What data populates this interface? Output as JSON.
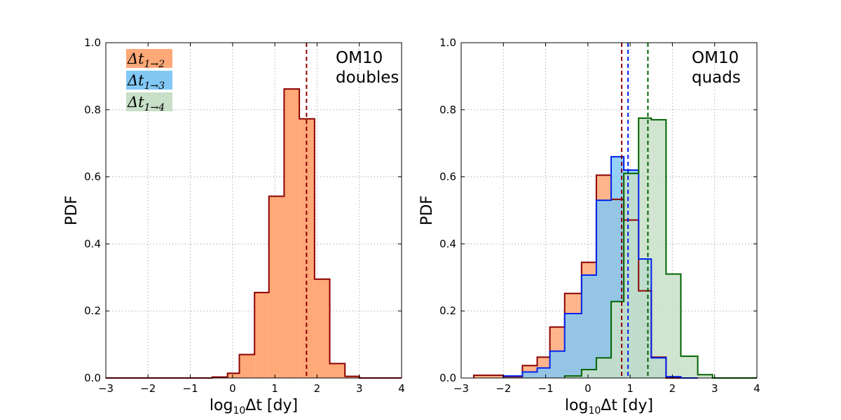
{
  "chart_data": [
    {
      "type": "histogram",
      "panel": "doubles",
      "annotation": [
        "OM10",
        "doubles"
      ],
      "xlabel": "log10Δt [dy]",
      "ylabel": "PDF",
      "xlim": [
        -3,
        4
      ],
      "ylim": [
        0,
        1.0
      ],
      "xticks": [
        "−3",
        "−2",
        "−1",
        "0",
        "1",
        "2",
        "3",
        "4"
      ],
      "yticks": [
        "0.0",
        "0.2",
        "0.4",
        "0.6",
        "0.8",
        "1.0"
      ],
      "grid": true,
      "legend": {
        "placement": "top-left",
        "entries": [
          {
            "base": "Δt",
            "sub": "1→2",
            "color": "#ffa878"
          },
          {
            "base": "Δt",
            "sub": "1→3",
            "color": "#82c8f5"
          },
          {
            "base": "Δt",
            "sub": "1→4",
            "color": "#c8dfc8"
          }
        ]
      },
      "series": [
        {
          "name": "Δt 1→2",
          "fill": "#ffa878",
          "edge": "#8b0000",
          "bin_edges": [
            -3.0,
            -2.64,
            -2.28,
            -1.92,
            -1.56,
            -1.2,
            -0.84,
            -0.48,
            -0.12,
            0.16,
            0.52,
            0.86,
            1.22,
            1.58,
            1.94,
            2.3,
            2.66,
            3.0,
            3.36,
            4.0
          ],
          "values": [
            0.0,
            0.0,
            0.0,
            0.0,
            0.0,
            0.0,
            0.0,
            0.003,
            0.014,
            0.07,
            0.255,
            0.542,
            0.862,
            0.773,
            0.295,
            0.043,
            0.005,
            0.0,
            0.0
          ],
          "median": 1.75
        }
      ]
    },
    {
      "type": "histogram",
      "panel": "quads",
      "annotation": [
        "OM10",
        "quads"
      ],
      "xlabel": "log10Δt [dy]",
      "ylabel": "PDF",
      "xlim": [
        -3,
        4
      ],
      "ylim": [
        0,
        1.0
      ],
      "xticks": [
        "−3",
        "−2",
        "−1",
        "0",
        "1",
        "2",
        "3",
        "4"
      ],
      "yticks": [
        "0.0",
        "0.2",
        "0.4",
        "0.6",
        "0.8",
        "1.0"
      ],
      "grid": true,
      "series": [
        {
          "name": "Δt 1→2",
          "fill": "#ffa878",
          "edge": "#8b0000",
          "bin_edges": [
            -2.7,
            -2.0,
            -1.55,
            -1.2,
            -0.9,
            -0.55,
            -0.15,
            0.2,
            0.55,
            0.85,
            1.2,
            1.5,
            1.85,
            2.2,
            2.6
          ],
          "values": [
            0.008,
            0.004,
            0.037,
            0.062,
            0.152,
            0.252,
            0.345,
            0.605,
            0.533,
            0.471,
            0.26,
            0.062,
            0.0,
            0.0
          ],
          "median": 0.8
        },
        {
          "name": "Δt 1→3",
          "fill": "#82c8f5",
          "edge": "#0022ee",
          "bin_edges": [
            -2.0,
            -1.55,
            -1.2,
            -0.9,
            -0.55,
            -0.15,
            0.2,
            0.55,
            0.85,
            1.2,
            1.5,
            1.85,
            2.2,
            2.6
          ],
          "values": [
            0.006,
            0.018,
            0.03,
            0.08,
            0.192,
            0.307,
            0.53,
            0.66,
            0.62,
            0.355,
            0.06,
            0.004,
            0.0
          ],
          "median": 0.95
        },
        {
          "name": "Δt 1→4",
          "fill": "#c8dfc8",
          "edge": "#006400",
          "bin_edges": [
            -0.55,
            -0.15,
            0.2,
            0.55,
            0.85,
            1.2,
            1.5,
            1.85,
            2.2,
            2.6,
            2.95,
            3.36,
            4.0
          ],
          "values": [
            0.006,
            0.025,
            0.06,
            0.228,
            0.61,
            0.775,
            0.77,
            0.31,
            0.065,
            0.01,
            0.0,
            0.0
          ],
          "median": 1.42
        }
      ]
    }
  ]
}
